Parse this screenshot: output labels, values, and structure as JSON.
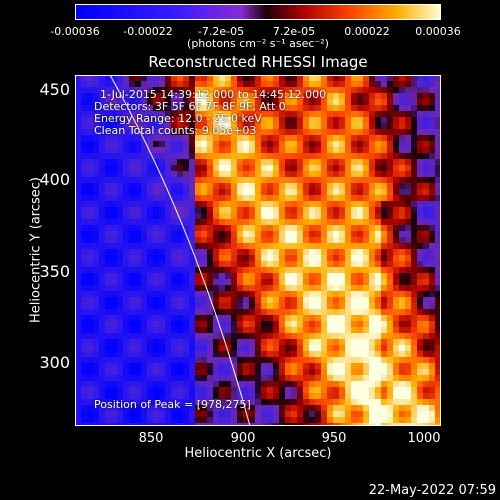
{
  "colorbar": {
    "ticks": [
      "-0.00036",
      "-0.00022",
      "-7.2e-05",
      "7.2e-05",
      "0.00022",
      "0.00036"
    ],
    "units": "(photons cm⁻² s⁻¹ asec⁻²)"
  },
  "plot": {
    "title": "Reconstructed RHESSI Image",
    "xlabel": "Heliocentric X (arcsec)",
    "ylabel": "Heliocentric Y (arcsec)",
    "xticks": [
      "850",
      "900",
      "950",
      "1000"
    ],
    "yticks": [
      "450",
      "400",
      "350",
      "300"
    ],
    "xlim": [
      810,
      1000
    ],
    "ylim": [
      265,
      455
    ]
  },
  "info": {
    "line1": "1-Jul-2015 14:39:12.000 to 14:45:12.000",
    "line2": "Detectors: 3F 5F 6F 7F 8F 9F, Att 0",
    "line3": "Energy Range: 12.0 - 25.0 keV",
    "line4": "Clean    Total counts: 9.05e+03",
    "peak": "Position of Peak = [978,275]"
  },
  "footer": {
    "date": "22-May-2022 07:59"
  },
  "colors": {
    "background": "#000000",
    "text": "#ffffff"
  }
}
